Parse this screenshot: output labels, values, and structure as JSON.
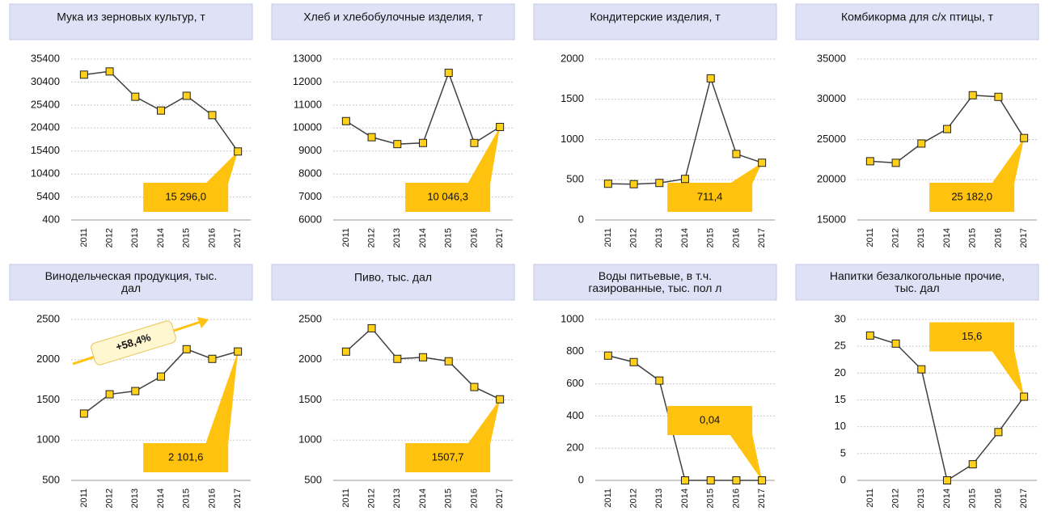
{
  "chart_data": [
    {
      "type": "line",
      "title": "Мука из зерновых культур, т",
      "categories": [
        "2011",
        "2012",
        "2013",
        "2014",
        "2015",
        "2016",
        "2017"
      ],
      "values": [
        32000,
        32700,
        27200,
        24200,
        27400,
        23200,
        15296.0
      ],
      "value_labels": [
        null,
        null,
        null,
        null,
        null,
        null,
        "15 296,0"
      ],
      "ylim": [
        400,
        35400
      ],
      "yticks": [
        400,
        5400,
        10400,
        15400,
        20400,
        25400,
        30400,
        35400
      ],
      "grid": true,
      "color": "#404040",
      "marker_color": "#ffd11a",
      "callout_color": "#ffc20e"
    },
    {
      "type": "line",
      "title": "Хлеб и хлебобулочные изделия, т",
      "categories": [
        "2011",
        "2012",
        "2013",
        "2014",
        "2015",
        "2016",
        "2017"
      ],
      "values": [
        10300,
        9600,
        9300,
        9350,
        12400,
        9350,
        10046.3
      ],
      "value_labels": [
        null,
        null,
        null,
        null,
        null,
        null,
        "10 046,3"
      ],
      "ylim": [
        6000,
        13000
      ],
      "yticks": [
        6000,
        7000,
        8000,
        9000,
        10000,
        11000,
        12000,
        13000
      ],
      "grid": true,
      "color": "#404040",
      "marker_color": "#ffd11a",
      "callout_color": "#ffc20e"
    },
    {
      "type": "line",
      "title": "Кондитерские изделия, т",
      "categories": [
        "2011",
        "2012",
        "2013",
        "2014",
        "2015",
        "2016",
        "2017"
      ],
      "values": [
        450,
        445,
        460,
        510,
        1760,
        820,
        711.4
      ],
      "value_labels": [
        null,
        null,
        null,
        null,
        null,
        null,
        "711,4"
      ],
      "ylim": [
        0,
        2000
      ],
      "yticks": [
        0,
        500,
        1000,
        1500,
        2000
      ],
      "grid": true,
      "color": "#404040",
      "marker_color": "#ffd11a",
      "callout_color": "#ffc20e"
    },
    {
      "type": "line",
      "title": "Комбикорма для с/х птицы, т",
      "categories": [
        "2011",
        "2012",
        "2013",
        "2014",
        "2015",
        "2016",
        "2017"
      ],
      "values": [
        22300,
        22100,
        24500,
        26300,
        30500,
        30300,
        25182.0
      ],
      "value_labels": [
        null,
        null,
        null,
        null,
        null,
        null,
        "25 182,0"
      ],
      "ylim": [
        15000,
        35000
      ],
      "yticks": [
        15000,
        20000,
        25000,
        30000,
        35000
      ],
      "grid": true,
      "color": "#404040",
      "marker_color": "#ffd11a",
      "callout_color": "#ffc20e"
    },
    {
      "type": "line",
      "title": "Винодельческая продукция, тыс. дал",
      "annotation": "+58,4%",
      "categories": [
        "2011",
        "2012",
        "2013",
        "2014",
        "2015",
        "2016",
        "2017"
      ],
      "values": [
        1330,
        1570,
        1610,
        1790,
        2130,
        2010,
        2101.6
      ],
      "value_labels": [
        null,
        null,
        null,
        null,
        null,
        null,
        "2 101,6"
      ],
      "ylim": [
        500,
        2500
      ],
      "yticks": [
        500,
        1000,
        1500,
        2000,
        2500
      ],
      "grid": true,
      "color": "#404040",
      "marker_color": "#ffd11a",
      "callout_color": "#ffc20e"
    },
    {
      "type": "line",
      "title": "Пиво, тыс. дал",
      "categories": [
        "2011",
        "2012",
        "2013",
        "2014",
        "2015",
        "2016",
        "2017"
      ],
      "values": [
        2100,
        2390,
        2010,
        2030,
        1980,
        1660,
        1507.7
      ],
      "value_labels": [
        null,
        null,
        null,
        null,
        null,
        null,
        "1507,7"
      ],
      "ylim": [
        500,
        2500
      ],
      "yticks": [
        500,
        1000,
        1500,
        2000,
        2500
      ],
      "grid": true,
      "color": "#404040",
      "marker_color": "#ffd11a",
      "callout_color": "#ffc20e"
    },
    {
      "type": "line",
      "title": "Воды питьевые, в т.ч. газированные, тыс. пол л",
      "categories": [
        "2011",
        "2012",
        "2013",
        "2014",
        "2015",
        "2016",
        "2017"
      ],
      "values": [
        775,
        735,
        620,
        0,
        0,
        0,
        0.04
      ],
      "value_labels": [
        null,
        null,
        null,
        null,
        null,
        null,
        "0,04"
      ],
      "ylim": [
        0,
        1000
      ],
      "yticks": [
        0,
        200,
        400,
        600,
        800,
        1000
      ],
      "grid": true,
      "color": "#404040",
      "marker_color": "#ffd11a",
      "callout_color": "#ffc20e"
    },
    {
      "type": "line",
      "title": "Напитки безалкогольные прочие, тыс. дал",
      "categories": [
        "2011",
        "2012",
        "2013",
        "2014",
        "2015",
        "2016",
        "2017"
      ],
      "values": [
        27,
        25.5,
        20.7,
        0,
        3,
        9,
        15.6
      ],
      "value_labels": [
        null,
        null,
        null,
        null,
        null,
        null,
        "15,6"
      ],
      "ylim": [
        0,
        30
      ],
      "yticks": [
        0,
        5,
        10,
        15,
        20,
        25,
        30
      ],
      "grid": true,
      "color": "#404040",
      "marker_color": "#ffd11a",
      "callout_color": "#ffc20e"
    }
  ]
}
